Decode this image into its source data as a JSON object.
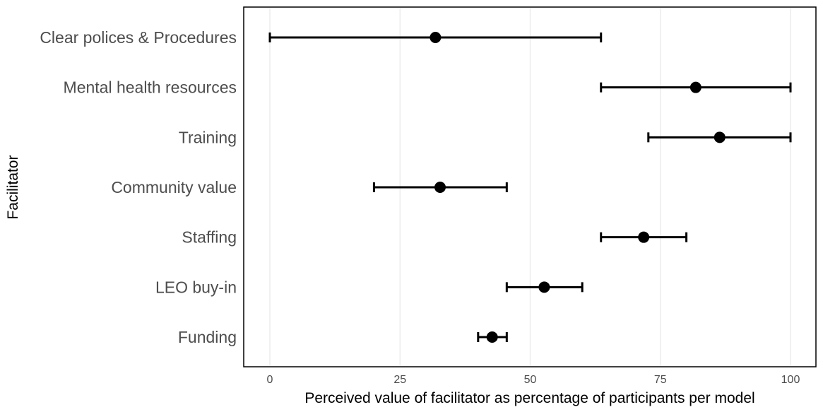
{
  "chart_data": {
    "type": "scatter",
    "title": "",
    "xlabel": "Perceived value of facilitator as percentage of participants per model",
    "ylabel": "Facilitator",
    "xlim": [
      -5,
      105
    ],
    "xticks": [
      0,
      25,
      50,
      75,
      100
    ],
    "grid": "vertical",
    "legend": "none",
    "colors": {
      "marker": "#000000",
      "grid": "#ebebeb",
      "panel_border": "#000000",
      "label": "#4d4d4d"
    },
    "categories": [
      "Clear polices & Procedures",
      "Mental health resources",
      "Training",
      "Community value",
      "Staffing",
      "LEO buy-in",
      "Funding"
    ],
    "series": [
      {
        "values": [
          31.8,
          81.8,
          86.4,
          32.7,
          71.8,
          52.7,
          42.7
        ],
        "lower": [
          0.0,
          63.6,
          72.7,
          20.0,
          63.6,
          45.5,
          40.0
        ],
        "upper": [
          63.6,
          100.0,
          100.0,
          45.5,
          80.0,
          60.0,
          45.5
        ]
      }
    ]
  }
}
